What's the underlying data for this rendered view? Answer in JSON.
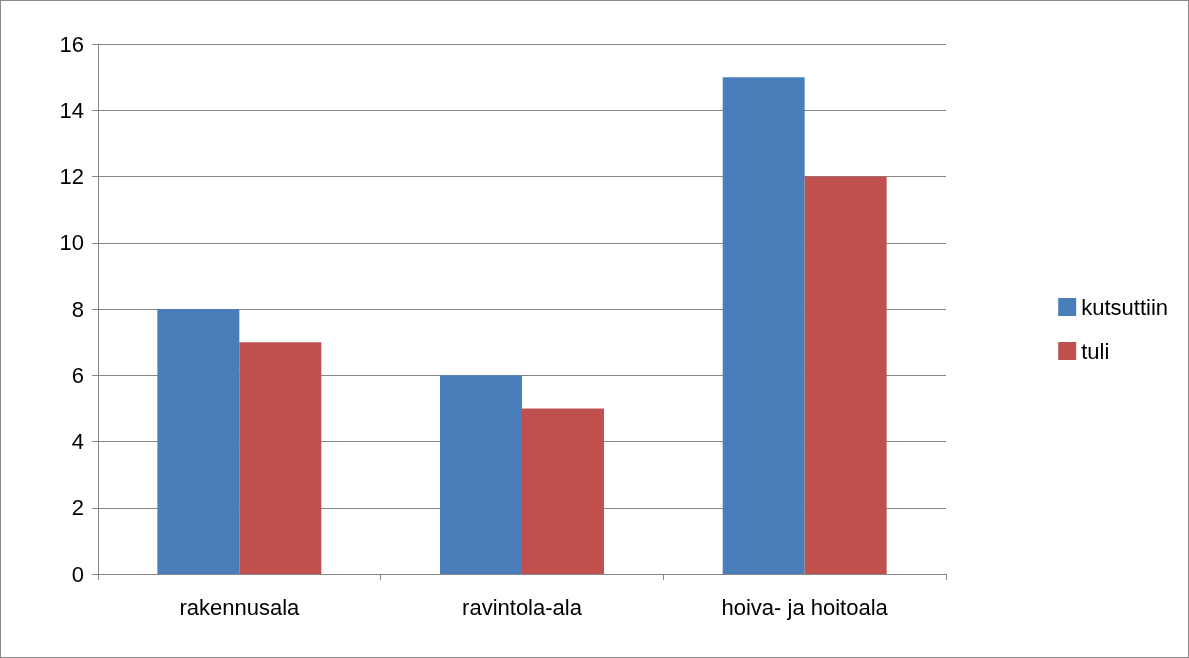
{
  "chart_data": {
    "type": "bar",
    "categories": [
      "rakennusala",
      "ravintola-ala",
      "hoiva- ja hoitoala"
    ],
    "series": [
      {
        "name": "kutsuttiin",
        "color": "#4a7ebb",
        "values": [
          8,
          6,
          15
        ]
      },
      {
        "name": "tuli",
        "color": "#c0504d",
        "values": [
          7,
          5,
          12
        ]
      }
    ],
    "ylim": [
      0,
      16
    ],
    "yticks": [
      0,
      2,
      4,
      6,
      8,
      10,
      12,
      14,
      16
    ],
    "grid": "y",
    "legend": "right"
  }
}
